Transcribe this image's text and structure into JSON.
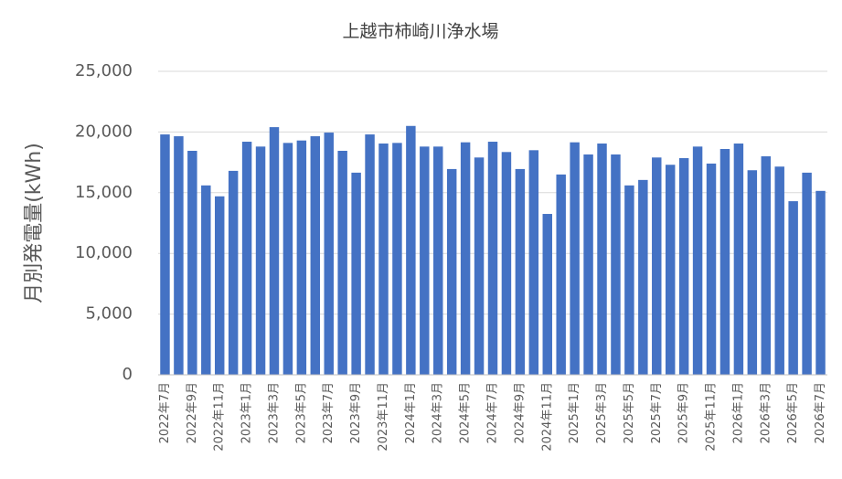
{
  "chart_data": {
    "type": "bar",
    "title": "上越市柿崎川浄水場",
    "y_label": "月別発電量(kWh)",
    "categories": [
      "2022年7月",
      null,
      "2022年9月",
      null,
      "2022年11月",
      null,
      "2023年1月",
      null,
      "2023年3月",
      null,
      "2023年5月",
      null,
      "2023年7月",
      null,
      "2023年9月",
      null,
      "2023年11月",
      null,
      "2024年1月",
      null,
      "2024年3月",
      null,
      "2024年5月",
      null,
      "2024年7月",
      null,
      "2024年9月",
      null,
      "2024年11月",
      null,
      "2025年1月",
      null,
      "2025年3月",
      null,
      "2025年5月",
      null,
      "2025年7月",
      null,
      "2025年9月",
      null,
      "2025年11月",
      null,
      "2026年1月",
      null,
      "2026年3月",
      null,
      "2026年5月",
      null,
      "2026年7月"
    ],
    "values": [
      19800,
      19650,
      18450,
      15600,
      14700,
      16800,
      19200,
      18800,
      20400,
      19100,
      19300,
      19650,
      19950,
      18450,
      16650,
      19800,
      19050,
      19100,
      20500,
      18800,
      18800,
      16950,
      19150,
      17900,
      19200,
      18350,
      16950,
      18500,
      13250,
      16500,
      19150,
      18150,
      19050,
      18150,
      15600,
      16050,
      17900,
      17300,
      17850,
      18800,
      17400,
      18600,
      19050,
      16850,
      18000,
      17150,
      14300,
      16650,
      15150
    ],
    "color": "#4472c4",
    "ylim": [
      0,
      25000
    ],
    "yticks": [
      0,
      {
        "value": 5000,
        "label": "5,000"
      },
      {
        "value": 10000,
        "label": "10,000"
      },
      {
        "value": 15000,
        "label": "15,000"
      },
      {
        "value": 20000,
        "label": "20,000"
      },
      {
        "value": 25000,
        "label": "25,000"
      }
    ],
    "grid": true
  }
}
